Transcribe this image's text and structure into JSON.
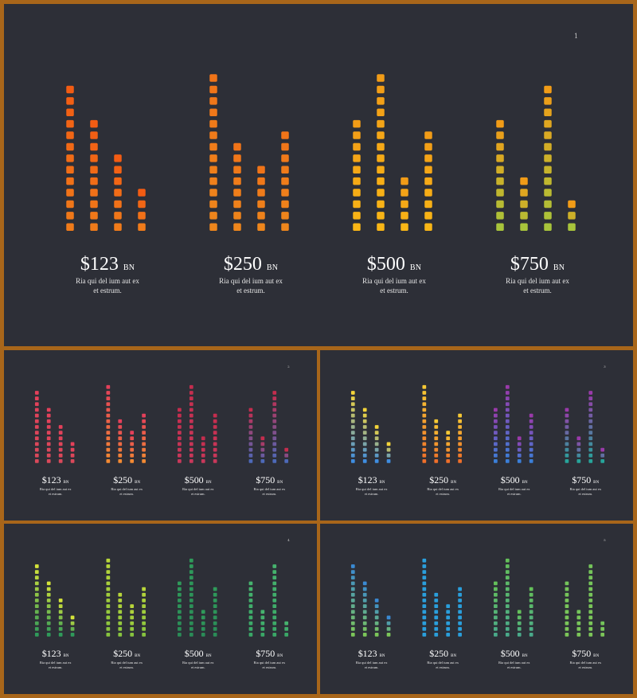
{
  "slides": [
    {
      "page_number": "1",
      "colors": [
        "#f07b1a",
        "#ee861c",
        "#f5a519",
        "#a8c43b"
      ],
      "colors_top": [
        "#f25c13",
        "#f07418",
        "#f19c17",
        "#f19c17"
      ],
      "grad_bottom": [
        null,
        null,
        "#f9b616",
        "#a8c43b"
      ]
    },
    {
      "page_number": "2",
      "colors": [
        "#d9495a",
        "#f07a3a",
        "#c8385a",
        "#7a56a8"
      ],
      "colors_top": [
        "#e4405a",
        "#e4405a",
        "#c42d4e",
        "#c42d4e"
      ],
      "grad_bottom": [
        null,
        "#f38a33",
        null,
        "#4d69b8"
      ]
    },
    {
      "page_number": "3",
      "colors": [
        "#e9c94a",
        "#f4b83a",
        "#8e3fb0",
        "#7a3f9a"
      ],
      "colors_top": [
        "#f3d43a",
        "#f7c934",
        "#9a3aaa",
        "#9a3aaa"
      ],
      "grad_bottom": [
        "#3f8de0",
        "#ee6f2a",
        "#3b7fd8",
        "#27a49a"
      ]
    },
    {
      "page_number": "4",
      "colors": [
        "#b9d53a",
        "#a9cf3e",
        "#2f9a5a",
        "#3fb06a"
      ],
      "colors_top": [
        "#d4e33a",
        "#b8d63a",
        "#2f9a5a",
        "#46b36e"
      ],
      "grad_bottom": [
        "#2f9a5a",
        "#87c43f",
        "#2a8c57",
        "#3aa867"
      ]
    },
    {
      "page_number": "5",
      "colors": [
        "#2f8fd1",
        "#2e9bd8",
        "#6cc05a",
        "#7cc659"
      ],
      "colors_top": [
        "#3a8ad3",
        "#2a9fdc",
        "#64c05a",
        "#74c45a"
      ],
      "grad_bottom": [
        "#7cc659",
        "#2a9fdc",
        "#4aaa8a",
        "#7cc659"
      ]
    }
  ],
  "chart_data": {
    "type": "bar",
    "title": "",
    "categories": [
      "$123 BN",
      "$250 BN",
      "$500 BN",
      "$750 BN"
    ],
    "groups": [
      {
        "amount": "$123",
        "unit": "BN",
        "description": "Ria qui del ium aut ex et estrum.",
        "bars": [
          13,
          10,
          7,
          4
        ]
      },
      {
        "amount": "$250",
        "unit": "BN",
        "description": "Ria qui del ium aut ex et estrum.",
        "bars": [
          14,
          8,
          6,
          9
        ]
      },
      {
        "amount": "$500",
        "unit": "BN",
        "description": "Ria qui del ium aut ex et estrum.",
        "bars": [
          10,
          14,
          5,
          9
        ]
      },
      {
        "amount": "$750",
        "unit": "BN",
        "description": "Ria qui del ium aut ex et estrum.",
        "bars": [
          10,
          5,
          13,
          3
        ]
      }
    ],
    "value_unit": "BN",
    "ylim": [
      0,
      14
    ]
  }
}
